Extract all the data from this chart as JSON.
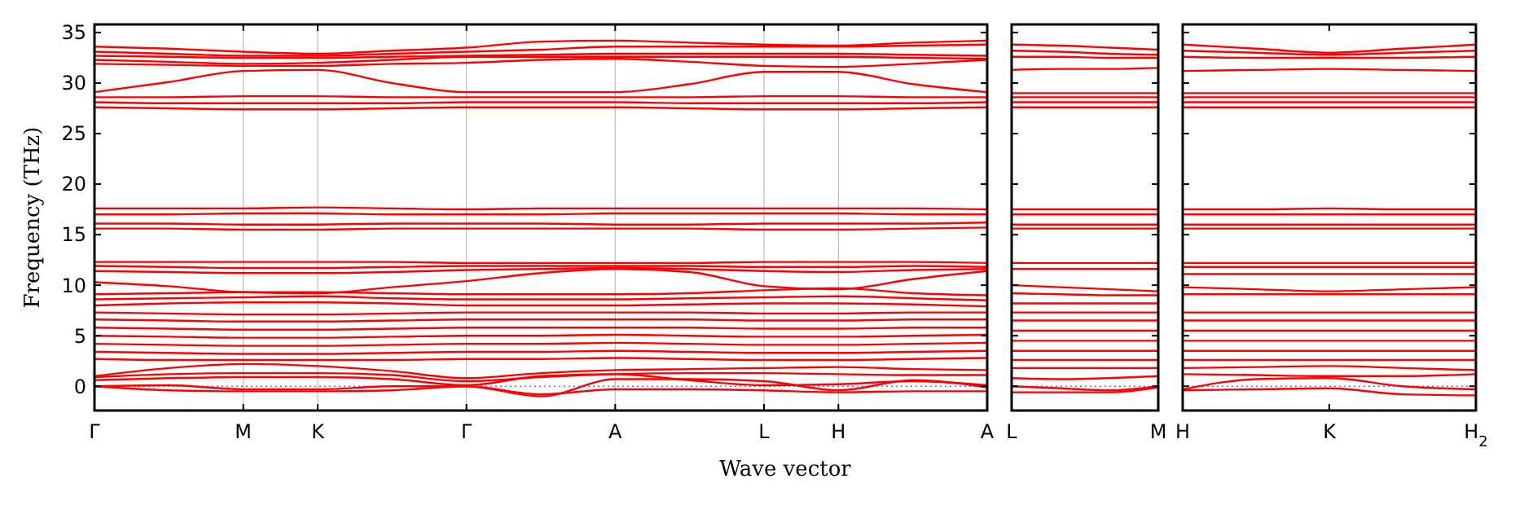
{
  "chart_data": [
    {
      "type": "line",
      "xlabel": "Wave vector",
      "ylabel": "Frequency (THz)",
      "grid": "x",
      "categories": [
        "Γ",
        null,
        "M",
        "K",
        null,
        "Γ",
        null,
        "A",
        null,
        "L",
        "H",
        null,
        "A"
      ],
      "ylim": [
        -2.4,
        35.8
      ],
      "yticks": [
        0,
        5,
        10,
        15,
        20,
        25,
        30,
        35
      ],
      "ref_lines": [
        {
          "axis": "y",
          "value": 0,
          "color": "#6666ff",
          "line_style": "dotted"
        }
      ],
      "series": [
        {
          "color": "#ff0000",
          "values": [
            33.6,
            33.4,
            33.1,
            32.9,
            33.2,
            33.5,
            34.1,
            34.2,
            34.0,
            33.8,
            33.7,
            34.0,
            34.2
          ]
        },
        {
          "color": "#ff0000",
          "values": [
            33.1,
            32.9,
            32.7,
            32.7,
            32.9,
            33.1,
            33.3,
            33.6,
            33.6,
            33.6,
            33.6,
            33.7,
            33.8
          ]
        },
        {
          "color": "#ff0000",
          "values": [
            32.7,
            32.6,
            32.5,
            32.5,
            32.6,
            32.7,
            32.8,
            32.9,
            32.9,
            32.9,
            32.9,
            32.8,
            32.7
          ]
        },
        {
          "color": "#ff0000",
          "values": [
            32.3,
            32.1,
            31.9,
            32.0,
            32.3,
            32.6,
            32.6,
            32.6,
            32.6,
            32.6,
            32.6,
            32.5,
            32.4
          ]
        },
        {
          "color": "#ff0000",
          "values": [
            31.9,
            31.8,
            31.7,
            31.7,
            31.9,
            32.0,
            32.3,
            32.4,
            32.1,
            31.7,
            31.6,
            31.9,
            32.3
          ]
        },
        {
          "color": "#ff0000",
          "values": [
            29.1,
            30.1,
            31.2,
            31.3,
            30.0,
            29.1,
            29.1,
            29.1,
            29.9,
            31.1,
            31.1,
            29.9,
            29.1
          ]
        },
        {
          "color": "#ff0000",
          "values": [
            28.6,
            28.6,
            28.7,
            28.7,
            28.6,
            28.6,
            28.6,
            28.6,
            28.6,
            28.7,
            28.7,
            28.6,
            28.6
          ]
        },
        {
          "color": "#ff0000",
          "values": [
            28.1,
            28.0,
            28.0,
            28.0,
            28.0,
            28.1,
            28.1,
            28.1,
            28.0,
            28.0,
            28.0,
            28.0,
            28.1
          ]
        },
        {
          "color": "#ff0000",
          "values": [
            27.6,
            27.5,
            27.4,
            27.4,
            27.5,
            27.6,
            27.6,
            27.6,
            27.5,
            27.4,
            27.4,
            27.5,
            27.6
          ]
        },
        {
          "color": "#ff0000",
          "values": [
            17.6,
            17.6,
            17.6,
            17.7,
            17.6,
            17.5,
            17.6,
            17.6,
            17.6,
            17.6,
            17.6,
            17.6,
            17.5
          ]
        },
        {
          "color": "#ff0000",
          "values": [
            17.0,
            17.0,
            17.1,
            17.1,
            17.0,
            17.0,
            17.0,
            17.1,
            17.1,
            17.1,
            17.1,
            17.0,
            17.0
          ]
        },
        {
          "color": "#ff0000",
          "values": [
            16.1,
            16.1,
            16.0,
            16.0,
            16.1,
            16.1,
            16.1,
            16.0,
            16.0,
            16.1,
            16.1,
            16.1,
            16.2
          ]
        },
        {
          "color": "#ff0000",
          "values": [
            15.6,
            15.6,
            15.5,
            15.5,
            15.6,
            15.6,
            15.6,
            15.6,
            15.6,
            15.5,
            15.5,
            15.6,
            15.7
          ]
        },
        {
          "color": "#ff0000",
          "values": [
            12.3,
            12.3,
            12.3,
            12.3,
            12.3,
            12.2,
            12.2,
            12.2,
            12.2,
            12.3,
            12.3,
            12.3,
            12.2
          ]
        },
        {
          "color": "#ff0000",
          "values": [
            11.9,
            11.8,
            11.7,
            11.7,
            11.8,
            11.9,
            11.9,
            11.9,
            11.9,
            11.8,
            11.8,
            11.9,
            11.8
          ]
        },
        {
          "color": "#ff0000",
          "values": [
            11.4,
            11.3,
            11.2,
            11.2,
            11.3,
            11.5,
            11.6,
            11.7,
            11.6,
            11.4,
            11.3,
            11.5,
            11.6
          ]
        },
        {
          "color": "#ff0000",
          "values": [
            10.3,
            9.9,
            9.3,
            9.2,
            9.8,
            10.4,
            11.2,
            11.6,
            11.3,
            9.9,
            9.6,
            10.6,
            11.4
          ]
        },
        {
          "color": "#ff0000",
          "values": [
            9.1,
            9.2,
            9.3,
            9.3,
            9.2,
            9.1,
            9.1,
            9.1,
            9.2,
            9.5,
            9.7,
            9.2,
            9.0
          ]
        },
        {
          "color": "#ff0000",
          "values": [
            8.6,
            8.7,
            8.8,
            8.9,
            8.7,
            8.6,
            8.6,
            8.6,
            8.7,
            8.8,
            8.9,
            8.7,
            8.5
          ]
        },
        {
          "color": "#ff0000",
          "values": [
            8.0,
            8.2,
            8.3,
            8.3,
            8.2,
            8.0,
            8.0,
            8.0,
            8.1,
            8.2,
            8.2,
            8.1,
            7.9
          ]
        },
        {
          "color": "#ff0000",
          "values": [
            7.3,
            7.2,
            7.1,
            7.1,
            7.2,
            7.3,
            7.3,
            7.3,
            7.3,
            7.2,
            7.2,
            7.3,
            7.3
          ]
        },
        {
          "color": "#ff0000",
          "values": [
            6.6,
            6.5,
            6.4,
            6.4,
            6.5,
            6.6,
            6.6,
            6.6,
            6.6,
            6.5,
            6.5,
            6.6,
            6.6
          ]
        },
        {
          "color": "#ff0000",
          "values": [
            5.8,
            5.7,
            5.6,
            5.6,
            5.7,
            5.8,
            5.8,
            5.8,
            5.8,
            5.7,
            5.7,
            5.8,
            5.8
          ]
        },
        {
          "color": "#ff0000",
          "values": [
            5.0,
            4.9,
            4.8,
            4.8,
            4.9,
            5.0,
            5.0,
            5.1,
            5.0,
            4.9,
            4.9,
            5.0,
            5.1
          ]
        },
        {
          "color": "#ff0000",
          "values": [
            4.2,
            4.1,
            4.0,
            4.0,
            4.1,
            4.2,
            4.2,
            4.3,
            4.2,
            4.1,
            4.1,
            4.2,
            4.3
          ]
        },
        {
          "color": "#ff0000",
          "values": [
            3.4,
            3.3,
            3.2,
            3.2,
            3.3,
            3.4,
            3.4,
            3.5,
            3.4,
            3.3,
            3.3,
            3.4,
            3.5
          ]
        },
        {
          "color": "#ff0000",
          "values": [
            2.7,
            2.6,
            2.6,
            2.6,
            2.6,
            2.7,
            2.7,
            2.8,
            2.7,
            2.6,
            2.6,
            2.7,
            2.8
          ]
        },
        {
          "color": "#ff0000",
          "values": [
            1.0,
            1.8,
            2.2,
            2.0,
            1.5,
            0.8,
            1.3,
            1.6,
            1.7,
            1.8,
            1.9,
            1.7,
            1.6
          ]
        },
        {
          "color": "#ff0000",
          "values": [
            0.9,
            1.2,
            1.3,
            1.3,
            1.1,
            0.5,
            0.9,
            1.2,
            1.3,
            1.3,
            1.2,
            1.1,
            1.1
          ]
        },
        {
          "color": "#ff0000",
          "values": [
            0.6,
            0.8,
            0.9,
            0.9,
            0.7,
            0.1,
            1.0,
            1.2,
            0.6,
            0.1,
            0.2,
            0.5,
            0.1
          ]
        },
        {
          "color": "#ff0000",
          "values": [
            0.0,
            0.1,
            -0.3,
            -0.3,
            0.0,
            0.0,
            -1.0,
            0.7,
            0.7,
            0.5,
            -0.4,
            0.6,
            -0.1
          ]
        },
        {
          "color": "#ff0000",
          "values": [
            0.0,
            -0.4,
            -0.5,
            -0.5,
            -0.4,
            0.0,
            -0.8,
            -0.3,
            -0.3,
            -0.4,
            -0.6,
            -0.5,
            -0.5
          ]
        }
      ]
    },
    {
      "type": "line",
      "tick_labels": "x",
      "categories": [
        "L",
        null,
        null,
        "M"
      ],
      "ylim": [
        -2.4,
        35.8
      ],
      "yticks": [
        0,
        5,
        10,
        15,
        20,
        25,
        30,
        35
      ],
      "ref_lines": [
        {
          "axis": "y",
          "value": 0,
          "color": "#6666ff",
          "line_style": "dotted"
        }
      ],
      "series": [
        {
          "color": "#ff0000",
          "values": [
            33.8,
            33.7,
            33.5,
            33.3
          ]
        },
        {
          "color": "#ff0000",
          "values": [
            33.2,
            33.1,
            32.9,
            32.8
          ]
        },
        {
          "color": "#ff0000",
          "values": [
            32.6,
            32.6,
            32.5,
            32.5
          ]
        },
        {
          "color": "#ff0000",
          "values": [
            31.3,
            31.4,
            31.4,
            31.5
          ]
        },
        {
          "color": "#ff0000",
          "values": [
            29.0,
            29.0,
            29.0,
            29.0
          ]
        },
        {
          "color": "#ff0000",
          "values": [
            28.6,
            28.6,
            28.6,
            28.6
          ]
        },
        {
          "color": "#ff0000",
          "values": [
            28.1,
            28.1,
            28.1,
            28.1
          ]
        },
        {
          "color": "#ff0000",
          "values": [
            27.6,
            27.6,
            27.6,
            27.6
          ]
        },
        {
          "color": "#ff0000",
          "values": [
            17.5,
            17.5,
            17.5,
            17.5
          ]
        },
        {
          "color": "#ff0000",
          "values": [
            17.0,
            17.0,
            17.0,
            17.0
          ]
        },
        {
          "color": "#ff0000",
          "values": [
            16.0,
            16.0,
            16.0,
            16.0
          ]
        },
        {
          "color": "#ff0000",
          "values": [
            15.6,
            15.6,
            15.6,
            15.6
          ]
        },
        {
          "color": "#ff0000",
          "values": [
            12.2,
            12.2,
            12.2,
            12.2
          ]
        },
        {
          "color": "#ff0000",
          "values": [
            11.6,
            11.6,
            11.6,
            11.6
          ]
        },
        {
          "color": "#ff0000",
          "values": [
            10.0,
            9.8,
            9.6,
            9.4
          ]
        },
        {
          "color": "#ff0000",
          "values": [
            9.2,
            9.1,
            9.0,
            9.0
          ]
        },
        {
          "color": "#ff0000",
          "values": [
            8.2,
            8.2,
            8.2,
            8.2
          ]
        },
        {
          "color": "#ff0000",
          "values": [
            7.3,
            7.3,
            7.3,
            7.3
          ]
        },
        {
          "color": "#ff0000",
          "values": [
            6.5,
            6.5,
            6.5,
            6.5
          ]
        },
        {
          "color": "#ff0000",
          "values": [
            5.5,
            5.5,
            5.5,
            5.5
          ]
        },
        {
          "color": "#ff0000",
          "values": [
            4.5,
            4.5,
            4.5,
            4.5
          ]
        },
        {
          "color": "#ff0000",
          "values": [
            3.5,
            3.5,
            3.5,
            3.5
          ]
        },
        {
          "color": "#ff0000",
          "values": [
            2.6,
            2.6,
            2.6,
            2.6
          ]
        },
        {
          "color": "#ff0000",
          "values": [
            1.8,
            1.8,
            1.8,
            1.8
          ]
        },
        {
          "color": "#ff0000",
          "values": [
            0.8,
            0.7,
            0.8,
            1.0
          ]
        },
        {
          "color": "#ff0000",
          "values": [
            0.0,
            -0.2,
            -0.4,
            0.0
          ]
        },
        {
          "color": "#ff0000",
          "values": [
            -0.6,
            -0.6,
            -0.6,
            -0.1
          ]
        }
      ]
    },
    {
      "type": "line",
      "tick_labels": "x",
      "categories": [
        "H",
        null,
        "K",
        null,
        "H$_{2}$"
      ],
      "ylim": [
        -2.4,
        35.8
      ],
      "yticks": [
        0,
        5,
        10,
        15,
        20,
        25,
        30,
        35
      ],
      "ref_lines": [
        {
          "axis": "y",
          "value": 0,
          "color": "#6666ff",
          "line_style": "dotted"
        }
      ],
      "series": [
        {
          "color": "#ff0000",
          "values": [
            33.8,
            33.4,
            33.0,
            33.4,
            33.8
          ]
        },
        {
          "color": "#ff0000",
          "values": [
            33.2,
            33.0,
            32.8,
            33.0,
            33.2
          ]
        },
        {
          "color": "#ff0000",
          "values": [
            32.6,
            32.5,
            32.5,
            32.5,
            32.6
          ]
        },
        {
          "color": "#ff0000",
          "values": [
            31.2,
            31.3,
            31.4,
            31.3,
            31.2
          ]
        },
        {
          "color": "#ff0000",
          "values": [
            29.0,
            29.0,
            29.0,
            29.0,
            29.0
          ]
        },
        {
          "color": "#ff0000",
          "values": [
            28.6,
            28.6,
            28.6,
            28.6,
            28.6
          ]
        },
        {
          "color": "#ff0000",
          "values": [
            28.1,
            28.1,
            28.1,
            28.1,
            28.1
          ]
        },
        {
          "color": "#ff0000",
          "values": [
            27.6,
            27.6,
            27.6,
            27.6,
            27.6
          ]
        },
        {
          "color": "#ff0000",
          "values": [
            17.5,
            17.5,
            17.6,
            17.5,
            17.5
          ]
        },
        {
          "color": "#ff0000",
          "values": [
            17.0,
            17.0,
            17.0,
            17.0,
            17.0
          ]
        },
        {
          "color": "#ff0000",
          "values": [
            16.0,
            16.0,
            16.0,
            16.0,
            16.0
          ]
        },
        {
          "color": "#ff0000",
          "values": [
            15.6,
            15.6,
            15.6,
            15.6,
            15.6
          ]
        },
        {
          "color": "#ff0000",
          "values": [
            12.2,
            12.2,
            12.2,
            12.2,
            12.2
          ]
        },
        {
          "color": "#ff0000",
          "values": [
            11.8,
            11.8,
            11.8,
            11.8,
            11.8
          ]
        },
        {
          "color": "#ff0000",
          "values": [
            11.1,
            11.1,
            11.1,
            11.1,
            11.1
          ]
        },
        {
          "color": "#ff0000",
          "values": [
            9.8,
            9.6,
            9.4,
            9.6,
            9.8
          ]
        },
        {
          "color": "#ff0000",
          "values": [
            9.1,
            9.1,
            9.1,
            9.1,
            9.1
          ]
        },
        {
          "color": "#ff0000",
          "values": [
            7.3,
            7.3,
            7.3,
            7.3,
            7.3
          ]
        },
        {
          "color": "#ff0000",
          "values": [
            6.5,
            6.5,
            6.5,
            6.5,
            6.5
          ]
        },
        {
          "color": "#ff0000",
          "values": [
            5.5,
            5.5,
            5.5,
            5.5,
            5.5
          ]
        },
        {
          "color": "#ff0000",
          "values": [
            4.5,
            4.5,
            4.5,
            4.5,
            4.5
          ]
        },
        {
          "color": "#ff0000",
          "values": [
            3.5,
            3.5,
            3.5,
            3.5,
            3.5
          ]
        },
        {
          "color": "#ff0000",
          "values": [
            2.6,
            2.6,
            2.6,
            2.6,
            2.6
          ]
        },
        {
          "color": "#ff0000",
          "values": [
            1.8,
            1.9,
            2.0,
            1.8,
            1.6
          ]
        },
        {
          "color": "#ff0000",
          "values": [
            1.2,
            1.1,
            1.0,
            1.0,
            1.2
          ]
        },
        {
          "color": "#ff0000",
          "values": [
            -0.3,
            0.7,
            0.8,
            0.0,
            -0.3
          ]
        },
        {
          "color": "#ff0000",
          "values": [
            -0.4,
            -0.3,
            -0.2,
            -0.8,
            -0.9
          ]
        }
      ]
    }
  ]
}
